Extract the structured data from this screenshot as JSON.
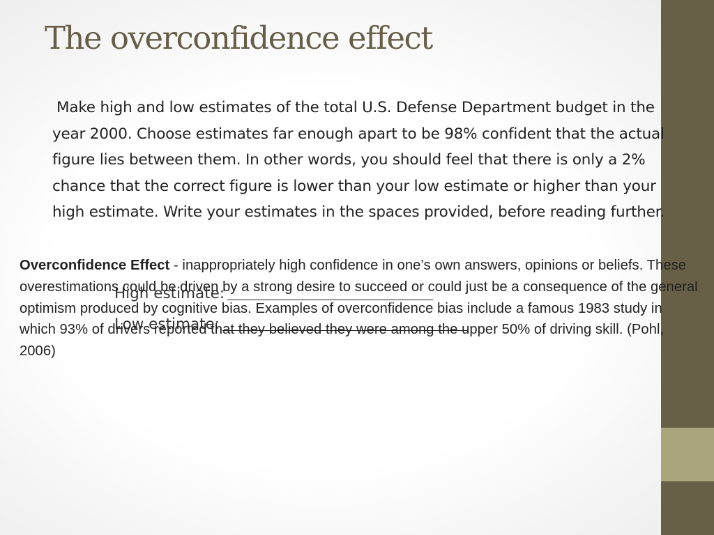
{
  "slide": {
    "title": "The overconfidence effect",
    "body": "Make high and low estimates of the total U.S. Defense Department budget in the year 2000. Choose estimates far enough apart to be 98% confident that the actual figure lies between them. In other words, you should feel that there is only a 2% chance that the correct figure is lower than your low estimate or higher than your high estimate. Write your estimates in the spaces provided, before reading further.",
    "high_estimate_label": "High estimate:",
    "low_estimate_label": "Low estimate:",
    "definition": {
      "term": "Overconfidence Effect",
      "text": " - inappropriately high confidence in one’s own answers, opinions or beliefs. These overestimations could be driven by a strong desire to succeed or could just be a consequence of the general optimism produced by cognitive bias. Examples of overconfidence bias include a famous 1983 study in which 93% of drivers reported that they believed they were among the upper 50% of driving skill. (Pohl, 2006)"
    }
  },
  "theme": {
    "title_color": "#675e47",
    "bar_color": "#676047",
    "bar_accent_color": "#a9a57c"
  }
}
